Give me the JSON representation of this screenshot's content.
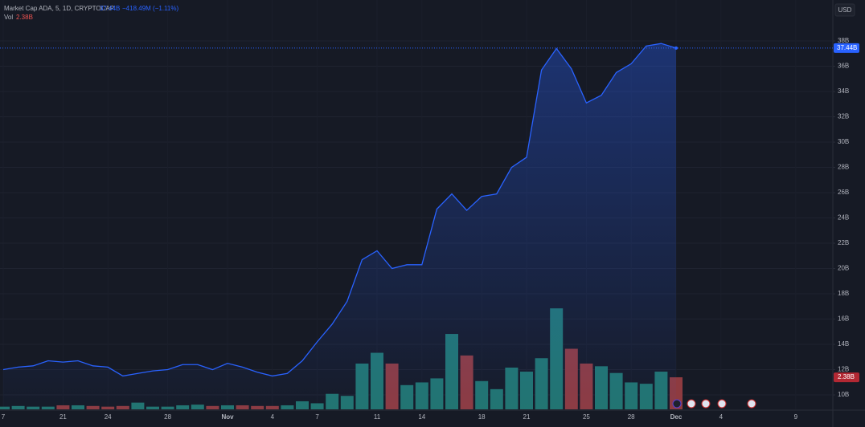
{
  "chart_data": {
    "type": "line",
    "title": "Market Cap ADA, 5, 1D, CRYPTOCAP",
    "currency": "USD",
    "categories": [
      "7",
      null,
      null,
      null,
      "21",
      null,
      null,
      "24",
      null,
      null,
      null,
      "28",
      null,
      null,
      null,
      "Nov",
      null,
      null,
      "4",
      null,
      null,
      "7",
      null,
      null,
      null,
      "11",
      null,
      null,
      "14",
      null,
      null,
      null,
      "18",
      null,
      null,
      "21",
      null,
      null,
      null,
      "25",
      null,
      null,
      "28",
      null,
      null,
      "Dec",
      null,
      null,
      "4",
      null,
      null,
      null,
      null,
      "9",
      null,
      null
    ],
    "series": [
      {
        "color": "#2962ff",
        "last_label": "37.44B",
        "change_label": "−418.49M (−1.11%)",
        "values": [
          12.0,
          12.2,
          12.3,
          12.7,
          12.6,
          12.7,
          12.3,
          12.2,
          11.5,
          11.7,
          11.9,
          12.0,
          12.4,
          12.4,
          12.0,
          12.5,
          12.2,
          11.8,
          11.5,
          11.7,
          12.7,
          14.2,
          15.6,
          17.4,
          20.7,
          21.4,
          20.0,
          20.3,
          20.3,
          24.7,
          25.9,
          24.6,
          25.7,
          25.9,
          28.0,
          28.8,
          35.7,
          37.4,
          35.8,
          33.1,
          33.7,
          35.5,
          36.2,
          37.6,
          37.8,
          37.44,
          null,
          null,
          null,
          null,
          null,
          null,
          null,
          null,
          null,
          null
        ]
      },
      {
        "name": "Vol",
        "type": "bar",
        "axis": "y2",
        "last_label": "2.38B",
        "up_color": "#22756f",
        "down_color": "#8e3b40",
        "values": [
          0.2,
          0.25,
          0.2,
          0.2,
          0.3,
          0.3,
          0.25,
          0.2,
          0.25,
          0.5,
          0.2,
          0.2,
          0.3,
          0.35,
          0.25,
          0.3,
          0.3,
          0.25,
          0.25,
          0.3,
          0.6,
          0.45,
          1.15,
          1.0,
          3.4,
          4.2,
          3.4,
          1.8,
          2.0,
          2.3,
          5.6,
          4.0,
          2.1,
          1.5,
          3.1,
          2.8,
          3.8,
          7.5,
          4.5,
          3.4,
          3.2,
          2.7,
          2.0,
          1.9,
          2.8,
          2.38,
          null,
          null,
          null,
          null,
          null,
          null,
          null,
          null,
          null,
          null
        ]
      }
    ],
    "ylim": [
      8.86,
      41.24
    ],
    "yticks": [
      {
        "value": 10,
        "label": "10B"
      },
      {
        "value": 12,
        "label": "12B"
      },
      {
        "value": 14,
        "label": "14B"
      },
      {
        "value": 16,
        "label": "16B"
      },
      {
        "value": 18,
        "label": "18B"
      },
      {
        "value": 20,
        "label": "20B"
      },
      {
        "value": 22,
        "label": "22B"
      },
      {
        "value": 24,
        "label": "24B"
      },
      {
        "value": 26,
        "label": "26B"
      },
      {
        "value": 28,
        "label": "28B"
      },
      {
        "value": 30,
        "label": "30B"
      },
      {
        "value": 32,
        "label": "32B"
      },
      {
        "value": 34,
        "label": "34B"
      },
      {
        "value": 36,
        "label": "36B"
      },
      {
        "value": 38,
        "label": "38B"
      }
    ],
    "y2lim": [
      0,
      30.4
    ],
    "grid": true
  }
}
